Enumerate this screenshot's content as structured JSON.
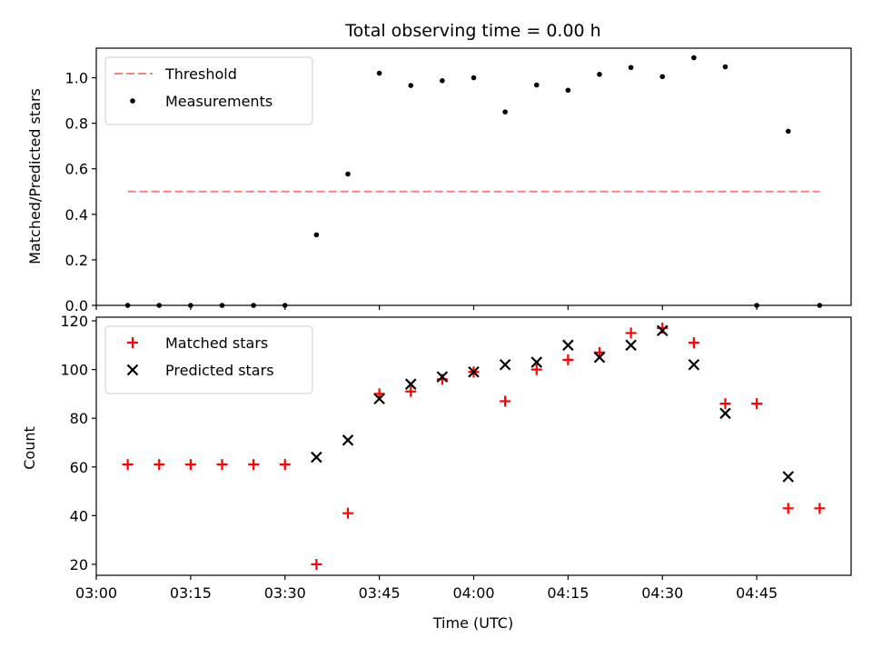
{
  "chart_data": {
    "type": "scatter",
    "title": "Total observing time = 0.00 h",
    "xlabel": "Time (UTC)",
    "x_ticks": [
      "03:00",
      "03:15",
      "03:30",
      "03:45",
      "04:00",
      "04:15",
      "04:30",
      "04:45"
    ],
    "x": [
      "03:05",
      "03:10",
      "03:15",
      "03:20",
      "03:25",
      "03:30",
      "03:35",
      "03:40",
      "03:45",
      "03:50",
      "03:55",
      "04:00",
      "04:05",
      "04:10",
      "04:15",
      "04:20",
      "04:25",
      "04:30",
      "04:35",
      "04:40",
      "04:45",
      "04:50",
      "04:55"
    ],
    "xlim": [
      "03:00",
      "05:00"
    ],
    "panels": [
      {
        "id": "ratio",
        "ylabel": "Matched/Predicted stars",
        "ylim": [
          0,
          1.13
        ],
        "y_ticks": [
          "0.0",
          "0.2",
          "0.4",
          "0.6",
          "0.8",
          "1.0"
        ],
        "legend_position": "top-left",
        "threshold": {
          "name": "Threshold",
          "value": 0.5,
          "x_range": [
            "03:05",
            "04:55"
          ],
          "color": "#ff7f7f"
        },
        "series": [
          {
            "name": "Measurements",
            "color": "#000000",
            "marker": "dot",
            "points": [
              [
                "03:05",
                0
              ],
              [
                "03:10",
                0
              ],
              [
                "03:15",
                0
              ],
              [
                "03:20",
                0
              ],
              [
                "03:25",
                0
              ],
              [
                "03:30",
                0
              ],
              [
                "03:35",
                0.31
              ],
              [
                "03:40",
                0.577
              ],
              [
                "03:45",
                1.02
              ],
              [
                "03:50",
                0.966
              ],
              [
                "03:55",
                0.987
              ],
              [
                "04:00",
                1.0
              ],
              [
                "04:05",
                0.85
              ],
              [
                "04:10",
                0.968
              ],
              [
                "04:15",
                0.945
              ],
              [
                "04:20",
                1.015
              ],
              [
                "04:25",
                1.045
              ],
              [
                "04:30",
                1.005
              ],
              [
                "04:35",
                1.088
              ],
              [
                "04:40",
                1.048
              ],
              [
                "04:45",
                0
              ],
              [
                "04:50",
                0.765
              ],
              [
                "04:55",
                0
              ]
            ]
          }
        ]
      },
      {
        "id": "count",
        "ylabel": "Count",
        "ylim": [
          15.5,
          121.5
        ],
        "y_ticks": [
          "20",
          "40",
          "60",
          "80",
          "100",
          "120"
        ],
        "legend_position": "top-left",
        "series": [
          {
            "name": "Matched stars",
            "color": "#ff0000",
            "marker": "plus",
            "points": [
              [
                "03:05",
                61
              ],
              [
                "03:10",
                61
              ],
              [
                "03:15",
                61
              ],
              [
                "03:20",
                61
              ],
              [
                "03:25",
                61
              ],
              [
                "03:30",
                61
              ],
              [
                "03:35",
                20
              ],
              [
                "03:40",
                41
              ],
              [
                "03:45",
                90
              ],
              [
                "03:50",
                91
              ],
              [
                "03:55",
                96
              ],
              [
                "04:00",
                99
              ],
              [
                "04:05",
                87
              ],
              [
                "04:10",
                100
              ],
              [
                "04:15",
                104
              ],
              [
                "04:20",
                107
              ],
              [
                "04:25",
                115
              ],
              [
                "04:30",
                117
              ],
              [
                "04:35",
                111
              ],
              [
                "04:40",
                86
              ],
              [
                "04:45",
                86
              ],
              [
                "04:50",
                43
              ],
              [
                "04:55",
                43
              ]
            ]
          },
          {
            "name": "Predicted stars",
            "color": "#000000",
            "marker": "x",
            "points": [
              [
                "03:35",
                64
              ],
              [
                "03:40",
                71
              ],
              [
                "03:45",
                88
              ],
              [
                "03:50",
                94
              ],
              [
                "03:55",
                97
              ],
              [
                "04:00",
                99
              ],
              [
                "04:05",
                102
              ],
              [
                "04:10",
                103
              ],
              [
                "04:15",
                110
              ],
              [
                "04:20",
                105
              ],
              [
                "04:25",
                110
              ],
              [
                "04:30",
                116
              ],
              [
                "04:35",
                102
              ],
              [
                "04:40",
                82
              ],
              [
                "04:50",
                56
              ]
            ]
          }
        ]
      }
    ]
  }
}
